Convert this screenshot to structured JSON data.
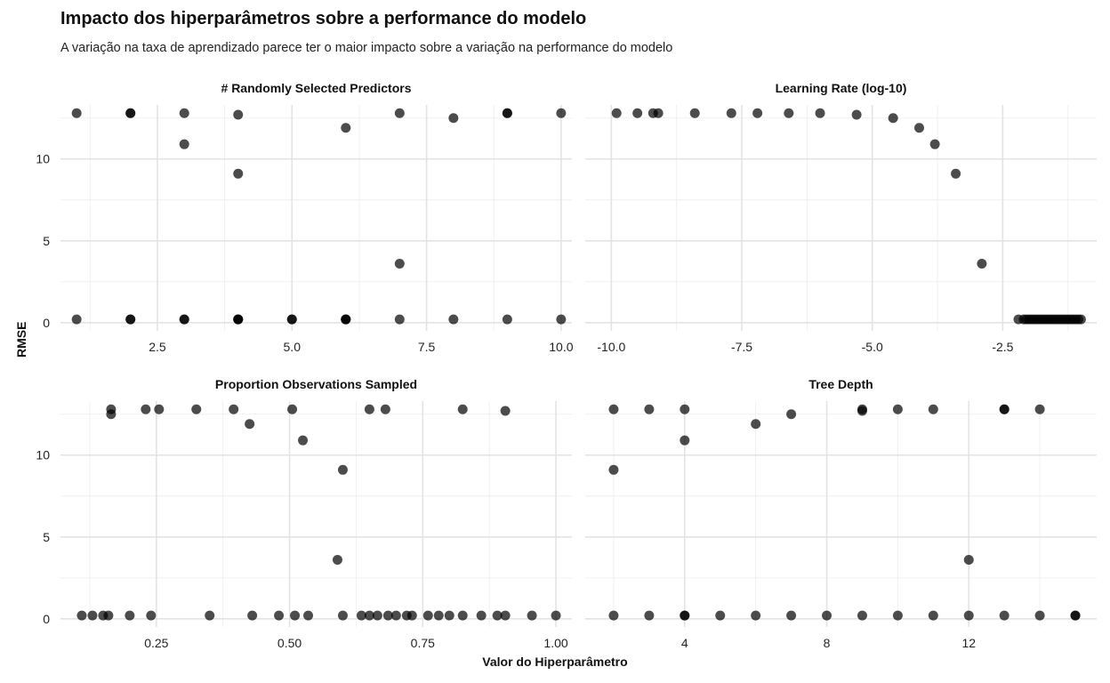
{
  "title": "Impacto dos hiperparâmetros sobre a performance do modelo",
  "subtitle": "A variação na taxa de aprendizado parece ter o maior impacto sobre a variação na performance do modelo",
  "xlabel": "Valor do Hiperparâmetro",
  "ylabel": "RMSE",
  "chart_data": [
    {
      "type": "scatter",
      "title": "# Randomly Selected Predictors",
      "xlim": [
        0.7,
        10.2
      ],
      "ylim": [
        -0.5,
        13.3
      ],
      "xticks": [
        2.5,
        5,
        7.5,
        10
      ],
      "xtick_labels": [
        "2.5",
        "5.0",
        "7.5",
        "10.0"
      ],
      "yticks": [
        0,
        5,
        10
      ],
      "ytick_labels": [
        "0",
        "5",
        "10"
      ],
      "grid": true,
      "x": [
        1,
        2,
        2,
        3,
        3,
        4,
        4,
        6,
        7,
        7,
        8,
        9,
        9,
        10,
        1,
        2,
        2,
        3,
        3,
        4,
        4,
        4,
        5,
        5,
        6,
        6,
        6,
        7,
        8,
        9,
        10
      ],
      "y": [
        12.8,
        12.8,
        12.8,
        12.8,
        10.9,
        12.7,
        9.1,
        11.9,
        12.8,
        3.6,
        12.5,
        12.8,
        12.8,
        12.8,
        0.2,
        0.2,
        0.2,
        0.2,
        0.2,
        0.2,
        0.2,
        0.2,
        0.2,
        0.2,
        0.2,
        0.2,
        0.2,
        0.2,
        0.2,
        0.2,
        0.2
      ]
    },
    {
      "type": "scatter",
      "title": "Learning Rate (log-10)",
      "xlim": [
        -10.5,
        -0.7
      ],
      "ylim": [
        -0.5,
        13.3
      ],
      "xticks": [
        -10,
        -7.5,
        -5,
        -2.5
      ],
      "xtick_labels": [
        "-10.0",
        "-7.5",
        "-5.0",
        "-2.5"
      ],
      "yticks": [
        0,
        5,
        10
      ],
      "ytick_labels": [
        "0",
        "5",
        "10"
      ],
      "grid": true,
      "x": [
        -9.9,
        -9.5,
        -9.2,
        -9.1,
        -8.4,
        -7.7,
        -7.2,
        -6.6,
        -6.0,
        -5.3,
        -4.6,
        -4.1,
        -3.8,
        -3.4,
        -2.9,
        -2.2,
        -2.1,
        -2.05,
        -2.0,
        -1.95,
        -1.9,
        -1.85,
        -1.8,
        -1.75,
        -1.7,
        -1.65,
        -1.6,
        -1.55,
        -1.5,
        -1.45,
        -1.4,
        -1.35,
        -1.3,
        -1.25,
        -1.2,
        -1.15,
        -1.1,
        -1.05,
        -1.0
      ],
      "y": [
        12.8,
        12.8,
        12.8,
        12.8,
        12.8,
        12.8,
        12.8,
        12.8,
        12.8,
        12.7,
        12.5,
        11.9,
        10.9,
        9.1,
        3.6,
        0.2,
        0.2,
        0.2,
        0.2,
        0.2,
        0.2,
        0.2,
        0.2,
        0.2,
        0.2,
        0.2,
        0.2,
        0.2,
        0.2,
        0.2,
        0.2,
        0.2,
        0.2,
        0.2,
        0.2,
        0.2,
        0.2,
        0.2,
        0.2
      ]
    },
    {
      "type": "scatter",
      "title": "Proportion Observations Sampled",
      "xlim": [
        0.07,
        1.03
      ],
      "ylim": [
        -0.5,
        13.3
      ],
      "xticks": [
        0.25,
        0.5,
        0.75,
        1.0
      ],
      "xtick_labels": [
        "0.25",
        "0.50",
        "0.75",
        "1.00"
      ],
      "yticks": [
        0,
        5,
        10
      ],
      "ytick_labels": [
        "0",
        "5",
        "10"
      ],
      "grid": true,
      "x": [
        0.165,
        0.165,
        0.23,
        0.255,
        0.325,
        0.395,
        0.425,
        0.505,
        0.525,
        0.6,
        0.59,
        0.65,
        0.68,
        0.825,
        0.905,
        0.11,
        0.13,
        0.15,
        0.16,
        0.2,
        0.24,
        0.35,
        0.43,
        0.48,
        0.51,
        0.535,
        0.6,
        0.635,
        0.65,
        0.665,
        0.685,
        0.7,
        0.72,
        0.73,
        0.76,
        0.78,
        0.8,
        0.825,
        0.86,
        0.89,
        0.905,
        0.955,
        1.0
      ],
      "y": [
        12.8,
        12.5,
        12.8,
        12.8,
        12.8,
        12.8,
        11.9,
        12.8,
        10.9,
        9.1,
        3.6,
        12.8,
        12.8,
        12.8,
        12.7,
        0.2,
        0.2,
        0.2,
        0.2,
        0.2,
        0.2,
        0.2,
        0.2,
        0.2,
        0.2,
        0.2,
        0.2,
        0.2,
        0.2,
        0.2,
        0.2,
        0.2,
        0.2,
        0.2,
        0.2,
        0.2,
        0.2,
        0.2,
        0.2,
        0.2,
        0.2,
        0.2,
        0.2
      ]
    },
    {
      "type": "scatter",
      "title": "Tree Depth",
      "xlim": [
        1.2,
        15.6
      ],
      "ylim": [
        -0.5,
        13.3
      ],
      "xticks": [
        4,
        8,
        12
      ],
      "xtick_labels": [
        "4",
        "8",
        "12"
      ],
      "yticks": [
        0,
        5,
        10
      ],
      "ytick_labels": [
        "0",
        "5",
        "10"
      ],
      "grid": true,
      "x": [
        2,
        2,
        3,
        4,
        4,
        6,
        7,
        9,
        9,
        10,
        11,
        12,
        13,
        13,
        14,
        2,
        3,
        4,
        4,
        5,
        6,
        7,
        8,
        9,
        10,
        11,
        12,
        13,
        14,
        15,
        15
      ],
      "y": [
        12.8,
        9.1,
        12.8,
        12.8,
        10.9,
        11.9,
        12.5,
        12.8,
        12.7,
        12.8,
        12.8,
        3.6,
        12.8,
        12.8,
        12.8,
        0.2,
        0.2,
        0.2,
        0.2,
        0.2,
        0.2,
        0.2,
        0.2,
        0.2,
        0.2,
        0.2,
        0.2,
        0.2,
        0.2,
        0.2,
        0.2
      ]
    }
  ]
}
